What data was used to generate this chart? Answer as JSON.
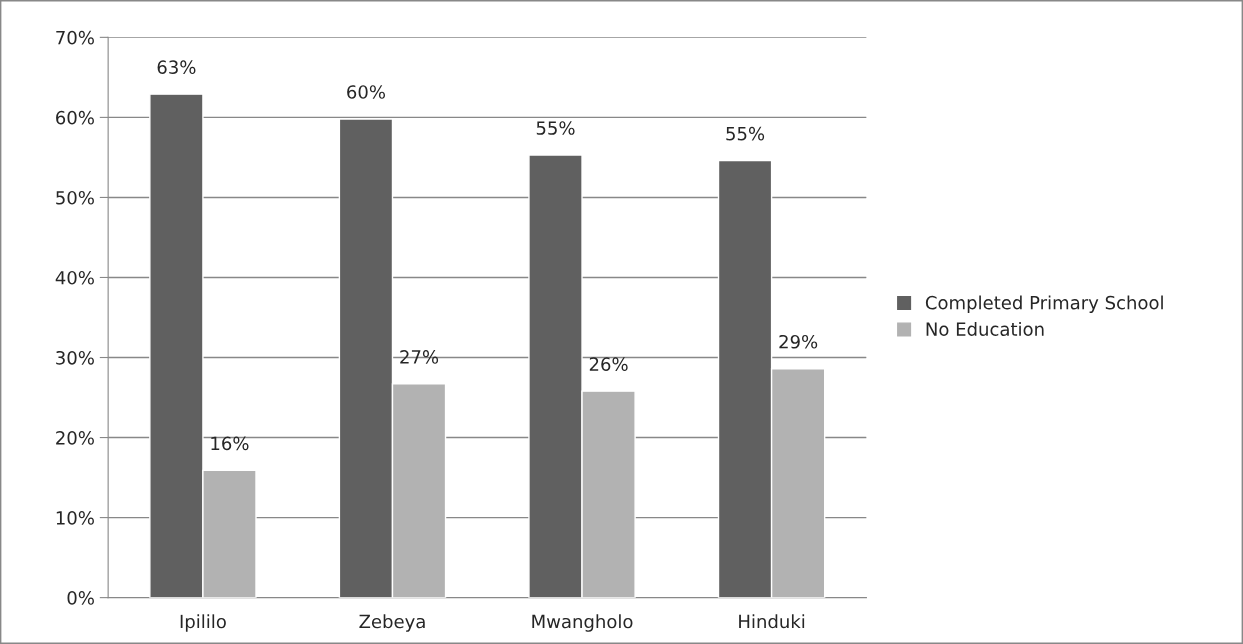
{
  "chart_data": {
    "type": "bar",
    "categories": [
      "Ipililo",
      "Zebeya",
      "Mwangholo",
      "Hinduki"
    ],
    "series": [
      {
        "name": "Completed Primary School",
        "color": "#606060",
        "values": [
          62.9,
          59.8,
          55.3,
          54.6
        ],
        "value_labels": [
          "63%",
          "60%",
          "55%",
          "55%"
        ]
      },
      {
        "name": "No Education",
        "color": "#b2b2b2",
        "values": [
          15.9,
          26.7,
          25.8,
          28.6
        ],
        "value_labels": [
          "16%",
          "27%",
          "26%",
          "29%"
        ]
      }
    ],
    "ylim": [
      0,
      70
    ],
    "yticks": [
      {
        "value": 0,
        "label": "0%"
      },
      {
        "value": 10,
        "label": "10%"
      },
      {
        "value": 20,
        "label": "20%"
      },
      {
        "value": 30,
        "label": "30%"
      },
      {
        "value": 40,
        "label": "40%"
      },
      {
        "value": 50,
        "label": "50%"
      },
      {
        "value": 60,
        "label": "60%"
      },
      {
        "value": 70,
        "label": "70%"
      }
    ],
    "grid": "y",
    "legend": "right"
  }
}
